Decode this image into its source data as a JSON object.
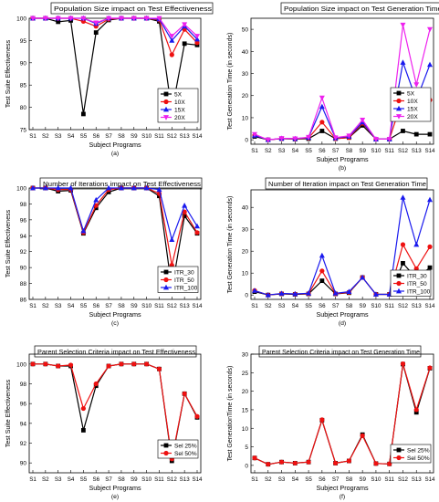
{
  "colors": {
    "black": "#000000",
    "red": "#ee1111",
    "blue": "#1a1aee",
    "magenta": "#ee22ee"
  },
  "chart_data": [
    {
      "type": "line",
      "title": "Population Size impact on Test Effectiveness",
      "caption": "(a)",
      "xlabel": "Subject Programs",
      "ylabel": "Test Suite Effectiveness",
      "categories": [
        "S1",
        "S2",
        "S3",
        "S4",
        "S5",
        "S6",
        "S7",
        "S8",
        "S9",
        "S10",
        "S11",
        "S12",
        "S13",
        "S14"
      ],
      "ylim": [
        75,
        100
      ],
      "yticks": [
        75,
        80,
        85,
        90,
        95,
        100
      ],
      "legend": "bottom-right",
      "series": [
        {
          "name": "5X",
          "color": "#000000",
          "marker": "square",
          "values": [
            100,
            100,
            99.2,
            99.5,
            78.5,
            96.8,
            99.6,
            100,
            100,
            100,
            99.3,
            79,
            94.3,
            94
          ]
        },
        {
          "name": "10X",
          "color": "#ee1111",
          "marker": "circle",
          "values": [
            100,
            100,
            100,
            100,
            99.3,
            98.2,
            99.8,
            100,
            100,
            100,
            99.6,
            91.8,
            97.5,
            94.5
          ]
        },
        {
          "name": "15X",
          "color": "#1a1aee",
          "marker": "triangle-up",
          "values": [
            100,
            100,
            100,
            100,
            100,
            98.8,
            100,
            100,
            100,
            100,
            99.8,
            95,
            98.2,
            95.3
          ]
        },
        {
          "name": "20X",
          "color": "#ee22ee",
          "marker": "triangle-down",
          "values": [
            100,
            100,
            100,
            100,
            100,
            99,
            100,
            100,
            100,
            100,
            100,
            96,
            98.6,
            96
          ]
        }
      ]
    },
    {
      "type": "line",
      "title": "Population Size impact on Test Generation Time",
      "caption": "(b)",
      "xlabel": "Subject Programs",
      "ylabel": "Test Generation Time (in seconds)",
      "categories": [
        "S1",
        "S2",
        "S3",
        "S4",
        "S5",
        "S6",
        "S7",
        "S8",
        "S9",
        "S10",
        "S11",
        "S12",
        "S13",
        "S14"
      ],
      "ylim": [
        -2,
        55
      ],
      "yticks": [
        0,
        10,
        20,
        30,
        40,
        50
      ],
      "legend": "right",
      "series": [
        {
          "name": "5X",
          "color": "#000000",
          "marker": "square",
          "values": [
            1.5,
            0,
            0.5,
            0.3,
            0.5,
            4,
            0.5,
            1,
            6.5,
            0.3,
            0.3,
            4,
            2.5,
            2.5
          ]
        },
        {
          "name": "10X",
          "color": "#ee1111",
          "marker": "circle",
          "values": [
            2,
            0,
            0.5,
            0.4,
            0.8,
            8,
            0.5,
            1,
            7.5,
            0.3,
            0.3,
            19,
            11,
            18
          ]
        },
        {
          "name": "15X",
          "color": "#1a1aee",
          "marker": "triangle-up",
          "values": [
            2,
            0,
            0.6,
            0.5,
            1,
            15,
            0.8,
            1.5,
            8,
            0.3,
            0.3,
            35,
            18,
            34
          ]
        },
        {
          "name": "20X",
          "color": "#ee22ee",
          "marker": "triangle-down",
          "values": [
            2.5,
            0,
            0.7,
            0.5,
            1.2,
            19,
            1,
            1.8,
            9,
            0.3,
            0.3,
            52,
            25,
            50
          ]
        }
      ]
    },
    {
      "type": "line",
      "title": "Number of Iterations impact on Test Effectiveness",
      "caption": "(c)",
      "xlabel": "Subject Programs",
      "ylabel": "Test Suite Effectiveness",
      "categories": [
        "S1",
        "S2",
        "S3",
        "S4",
        "S5",
        "S6",
        "S7",
        "S8",
        "S9",
        "S10",
        "S11",
        "S12",
        "S13",
        "S14"
      ],
      "ylim": [
        86,
        100
      ],
      "yticks": [
        86,
        88,
        90,
        92,
        94,
        96,
        98,
        100
      ],
      "legend": "bottom-right",
      "series": [
        {
          "name": "ITR_30",
          "color": "#000000",
          "marker": "square",
          "values": [
            100,
            100,
            99.6,
            99.7,
            94.3,
            97.5,
            99.5,
            100,
            100,
            100,
            99,
            87.3,
            96.5,
            94.3
          ]
        },
        {
          "name": "ITR_50",
          "color": "#ee1111",
          "marker": "circle",
          "values": [
            100,
            100,
            99.8,
            99.8,
            94.4,
            97.8,
            99.8,
            100,
            100,
            100,
            99.3,
            90.3,
            97,
            94.4
          ]
        },
        {
          "name": "ITR_100",
          "color": "#1a1aee",
          "marker": "triangle-up",
          "values": [
            100,
            100,
            100,
            100,
            94.6,
            98.5,
            100,
            100,
            100,
            100,
            99.8,
            93.5,
            97.8,
            95.2
          ]
        }
      ]
    },
    {
      "type": "line",
      "title": "Number of Iteration impact on Test Generation Time",
      "caption": "(d)",
      "xlabel": "Subject Programs",
      "ylabel": "Test Generation Time (in seconds)",
      "categories": [
        "S1",
        "S2",
        "S3",
        "S4",
        "S5",
        "S6",
        "S7",
        "S8",
        "S9",
        "S10",
        "S11",
        "S12",
        "S13",
        "S14"
      ],
      "ylim": [
        -2,
        48
      ],
      "yticks": [
        0,
        10,
        20,
        30,
        40
      ],
      "legend": "bottom-right",
      "series": [
        {
          "name": "ITR_30",
          "color": "#000000",
          "marker": "square",
          "values": [
            1.5,
            0,
            0.5,
            0.3,
            0.5,
            6.5,
            0.5,
            1,
            8,
            0.3,
            0.3,
            14.5,
            7.5,
            12.5
          ]
        },
        {
          "name": "ITR_50",
          "color": "#ee1111",
          "marker": "circle",
          "values": [
            2,
            0,
            0.6,
            0.4,
            0.6,
            11,
            0.6,
            1.2,
            8,
            0.3,
            0.3,
            23,
            12,
            22
          ]
        },
        {
          "name": "ITR_100",
          "color": "#1a1aee",
          "marker": "triangle-up",
          "values": [
            2,
            0,
            0.7,
            0.5,
            0.8,
            18,
            0.8,
            1.5,
            8,
            0.3,
            0.3,
            44.5,
            23,
            43.5
          ]
        }
      ]
    },
    {
      "type": "line",
      "title": "Parent Selection Criteria impact on Test Effectiveness",
      "caption": "(e)",
      "xlabel": "Subject Programs",
      "ylabel": "Test Suite Effectiveness",
      "categories": [
        "S1",
        "S2",
        "S3",
        "S4",
        "S5",
        "S6",
        "S7",
        "S8",
        "S9",
        "S10",
        "S11",
        "S12",
        "S13",
        "S14"
      ],
      "ylim": [
        89,
        101
      ],
      "yticks": [
        90,
        92,
        94,
        96,
        98,
        100
      ],
      "legend": "bottom-right",
      "series": [
        {
          "name": "Sel 25%",
          "color": "#000000",
          "marker": "square",
          "values": [
            100,
            100,
            99.8,
            99.8,
            93.3,
            97.8,
            99.8,
            100,
            100,
            100,
            99.5,
            90.2,
            97,
            94.6
          ]
        },
        {
          "name": "Sel 50%",
          "color": "#ee1111",
          "marker": "circle",
          "values": [
            100,
            100,
            99.8,
            99.9,
            95.5,
            98,
            99.8,
            100,
            100,
            100,
            99.5,
            90.4,
            97,
            94.7
          ]
        }
      ]
    },
    {
      "type": "line",
      "title": "Parent Selection Criteria impact on Test Generation Time",
      "caption": "(f)",
      "xlabel": "Subject Programs",
      "ylabel": "Test GenerationTime (in seconds)",
      "categories": [
        "S1",
        "S2",
        "S3",
        "S4",
        "S5",
        "S6",
        "S7",
        "S8",
        "S9",
        "S10",
        "S11",
        "S12",
        "S13",
        "S14"
      ],
      "ylim": [
        -2,
        30
      ],
      "yticks": [
        0,
        5,
        10,
        15,
        20,
        25,
        30
      ],
      "legend": "bottom-right",
      "series": [
        {
          "name": "Sel 25%",
          "color": "#000000",
          "marker": "square",
          "values": [
            2,
            0.3,
            0.9,
            0.6,
            0.9,
            12.2,
            0.6,
            1.2,
            8.3,
            0.5,
            0.4,
            27.3,
            14.3,
            26.2
          ]
        },
        {
          "name": "Sel 50%",
          "color": "#ee1111",
          "marker": "circle",
          "values": [
            2,
            0.3,
            0.9,
            0.6,
            0.9,
            12.3,
            0.6,
            1.2,
            8,
            0.5,
            0.4,
            27.4,
            15,
            26.3
          ]
        }
      ]
    }
  ]
}
